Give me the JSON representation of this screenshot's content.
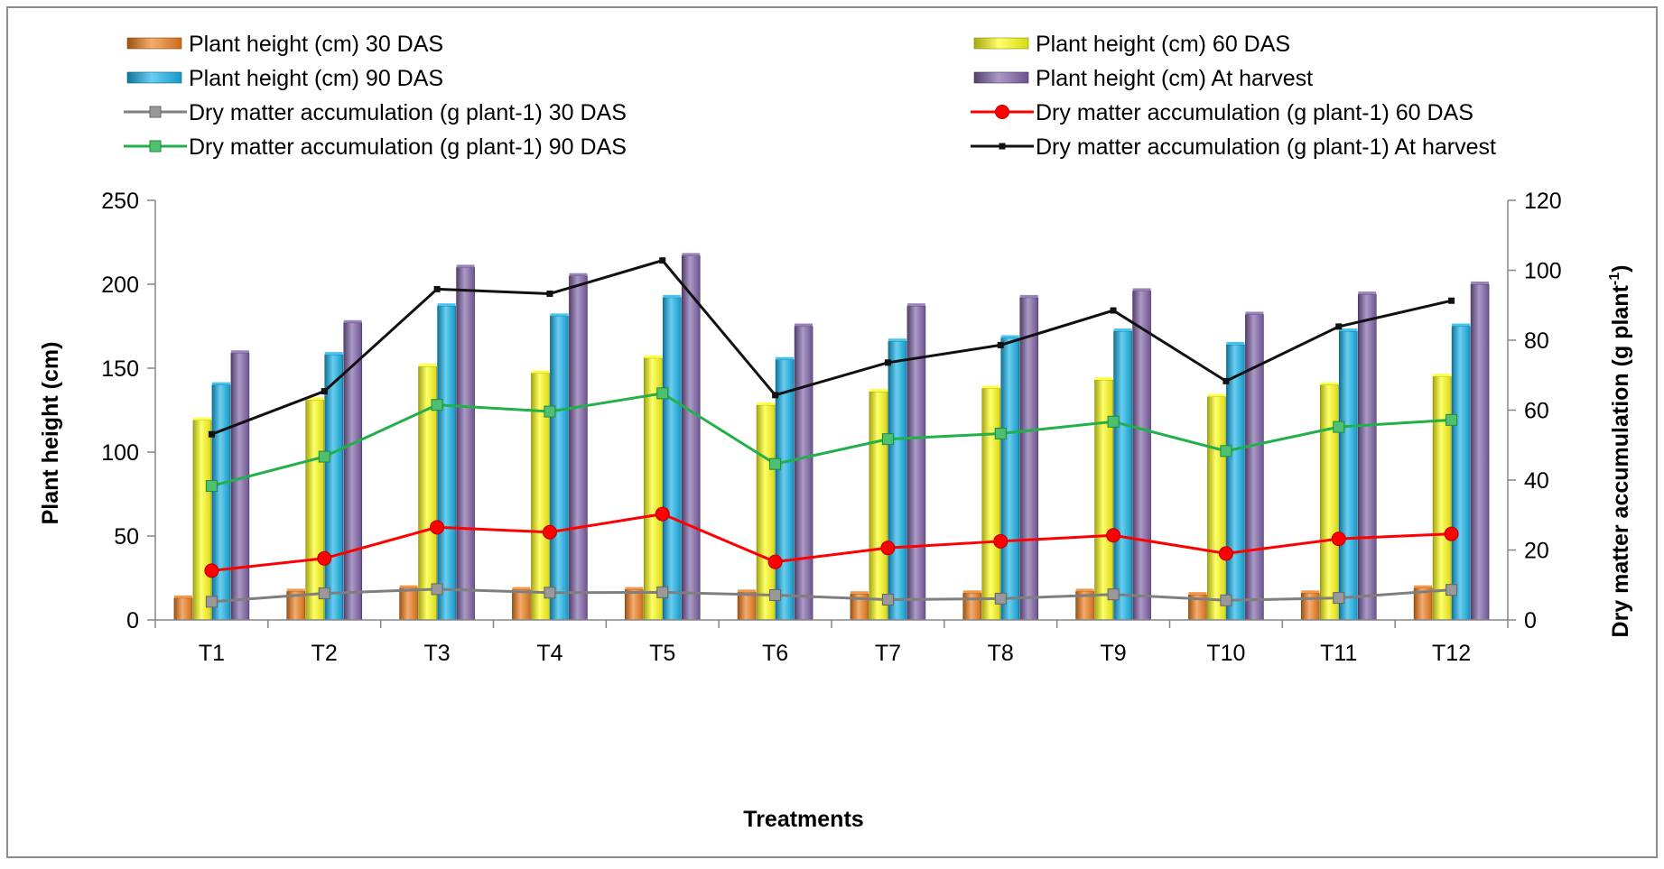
{
  "chart_data": {
    "type": "bar",
    "categories": [
      "T1",
      "T2",
      "T3",
      "T4",
      "T5",
      "T6",
      "T7",
      "T8",
      "T9",
      "T10",
      "T11",
      "T12"
    ],
    "xlabel": "Treatments",
    "ylabel": "Plant height (cm)",
    "y2label_main": "Dry matter accumulation (g plant",
    "y2label_sup": "-1",
    "y2label_end": ")",
    "ylim": [
      0,
      250
    ],
    "y_ticks": [
      "0",
      "50",
      "100",
      "150",
      "200",
      "250"
    ],
    "y2lim": [
      0,
      120
    ],
    "y2_ticks": [
      "0",
      "20",
      "40",
      "60",
      "80",
      "100",
      "120"
    ],
    "grid": false,
    "legend_position": "top",
    "bar_series": [
      {
        "name": "Plant height (cm) 30 DAS",
        "color": "#f07f1e",
        "values": [
          13,
          17,
          19,
          18,
          18,
          16.5,
          15.5,
          16,
          17,
          15,
          16,
          19
        ]
      },
      {
        "name": "Plant height (cm) 60 DAS",
        "color": "#ffff1a",
        "values": [
          119,
          131,
          151,
          147,
          156,
          128,
          136,
          138,
          143,
          133,
          140,
          145
        ]
      },
      {
        "name": "Plant height (cm) 90 DAS",
        "color": "#18b4ea",
        "values": [
          140,
          158,
          187,
          181,
          192,
          155,
          166,
          168,
          172,
          164,
          172,
          175
        ]
      },
      {
        "name": "Plant height (cm) At harvest",
        "color": "#7f63a8",
        "values": [
          159,
          177,
          210,
          205,
          217,
          175,
          187,
          192,
          196,
          182,
          194,
          200
        ]
      }
    ],
    "line_series": [
      {
        "name": "Dry matter accumulation (g plant-1) 30 DAS",
        "color": "#7f7f7f",
        "marker": "square",
        "values": [
          5.2,
          7.6,
          8.8,
          7.8,
          7.9,
          7.1,
          5.8,
          6.1,
          7.3,
          5.6,
          6.3,
          8.6
        ]
      },
      {
        "name": "Dry matter accumulation (g plant-1) 60 DAS",
        "color": "#ff0000",
        "marker": "circle",
        "values": [
          14.1,
          17.6,
          26.5,
          25.1,
          30.3,
          16.6,
          20.6,
          22.5,
          24.2,
          19,
          23.2,
          24.6
        ]
      },
      {
        "name": "Dry matter accumulation (g plant-1) 90 DAS",
        "color": "#22b04b",
        "marker": "square",
        "values": [
          38.3,
          46.7,
          61.5,
          59.6,
          64.8,
          44.6,
          51.7,
          53.3,
          56.7,
          48.3,
          55.2,
          57.2
        ]
      },
      {
        "name": "Dry matter accumulation (g plant-1) At harvest",
        "color": "#111111",
        "marker": "small-square",
        "values": [
          53.1,
          65.4,
          94.6,
          93.3,
          102.8,
          64.3,
          73.6,
          78.6,
          88.5,
          68.3,
          83.9,
          91.3
        ]
      }
    ]
  }
}
